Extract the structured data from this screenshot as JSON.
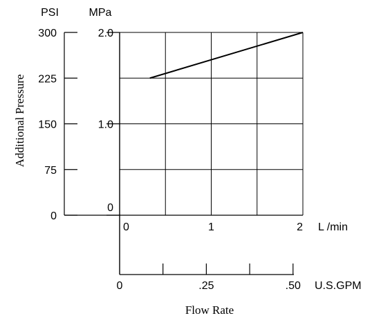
{
  "chart_data": {
    "type": "line",
    "title": "",
    "xlabel": "Flow Rate",
    "ylabel": "Additional Pressure",
    "y_unit_primary": "PSI",
    "y_unit_secondary": "MPa",
    "x_unit_primary": "L /min",
    "x_unit_secondary": "U.S.GPM",
    "psi_ticks": [
      "300",
      "225",
      "150",
      "75",
      "0"
    ],
    "psi_tick_values": [
      300,
      225,
      150,
      75,
      0
    ],
    "mpa_ticks": [
      "2.0",
      "1.0",
      "0"
    ],
    "mpa_tick_values": [
      2.0,
      1.0,
      0
    ],
    "lmin_ticks": [
      "0",
      "1",
      "2"
    ],
    "lmin_tick_values": [
      0,
      1,
      2
    ],
    "gpm_ticks": [
      "0",
      ".25",
      ".50"
    ],
    "gpm_tick_values": [
      0,
      0.25,
      0.5
    ],
    "xlim": [
      0,
      2
    ],
    "ylim": [
      0,
      2.0
    ],
    "grid": true,
    "series": [
      {
        "x": [
          0.33,
          2.0
        ],
        "y": [
          1.5,
          2.0
        ]
      }
    ],
    "colors": {
      "line": "#000000",
      "grid": "#000000",
      "text": "#000000"
    }
  }
}
